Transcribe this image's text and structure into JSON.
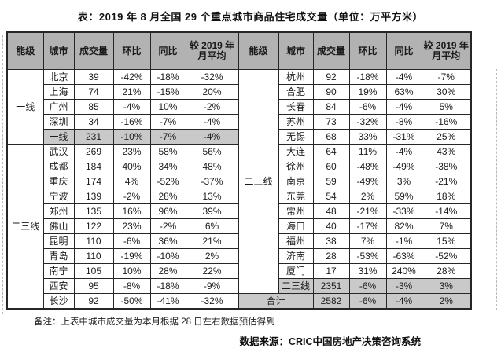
{
  "title": "表：2019 年 8 月全国 29 个重点城市商品住宅成交量（单位：万平方米）",
  "header": [
    "能级",
    "城市",
    "成交量",
    "环比",
    "同比",
    "较 2019 年\n月平均"
  ],
  "left_table": {
    "groups": [
      {
        "tier": "一线",
        "cities": [
          [
            "北京",
            "39",
            "-42%",
            "-18%",
            "-32%"
          ],
          [
            "上海",
            "74",
            "21%",
            "-15%",
            "20%"
          ],
          [
            "广州",
            "85",
            "-4%",
            "10%",
            "-2%"
          ],
          [
            "深圳",
            "34",
            "-16%",
            "-7%",
            "-4%"
          ]
        ],
        "summary": [
          "一线",
          "231",
          "-10%",
          "-7%",
          "-4%"
        ]
      },
      {
        "tier": "二三线",
        "cities": [
          [
            "武汉",
            "269",
            "23%",
            "58%",
            "56%"
          ],
          [
            "成都",
            "184",
            "40%",
            "34%",
            "48%"
          ],
          [
            "重庆",
            "174",
            "4%",
            "-52%",
            "-37%"
          ],
          [
            "宁波",
            "139",
            "-2%",
            "28%",
            "13%"
          ],
          [
            "郑州",
            "135",
            "16%",
            "96%",
            "39%"
          ],
          [
            "佛山",
            "122",
            "23%",
            "-2%",
            "6%"
          ],
          [
            "昆明",
            "110",
            "-6%",
            "36%",
            "21%"
          ],
          [
            "青岛",
            "110",
            "-19%",
            "-10%",
            "2%"
          ],
          [
            "南宁",
            "105",
            "10%",
            "28%",
            "22%"
          ],
          [
            "西安",
            "95",
            "-8%",
            "-18%",
            "-9%"
          ],
          [
            "长沙",
            "92",
            "-50%",
            "-41%",
            "-32%"
          ]
        ],
        "summary": null
      }
    ]
  },
  "right_table": {
    "groups": [
      {
        "tier": "二三线",
        "cities": [
          [
            "杭州",
            "92",
            "-18%",
            "-4%",
            "-7%"
          ],
          [
            "合肥",
            "90",
            "19%",
            "63%",
            "30%"
          ],
          [
            "长春",
            "84",
            "-6%",
            "-4%",
            "5%"
          ],
          [
            "苏州",
            "73",
            "-32%",
            "-8%",
            "-16%"
          ],
          [
            "无锡",
            "68",
            "33%",
            "-31%",
            "25%"
          ],
          [
            "大连",
            "64",
            "11%",
            "-4%",
            "43%"
          ],
          [
            "徐州",
            "60",
            "-48%",
            "-49%",
            "-38%"
          ],
          [
            "南京",
            "59",
            "-49%",
            "3%",
            "-21%"
          ],
          [
            "东莞",
            "54",
            "2%",
            "59%",
            "18%"
          ],
          [
            "常州",
            "48",
            "-21%",
            "-33%",
            "-14%"
          ],
          [
            "海口",
            "40",
            "-17%",
            "82%",
            "7%"
          ],
          [
            "福州",
            "38",
            "7%",
            "-1%",
            "15%"
          ],
          [
            "济南",
            "28",
            "-53%",
            "-63%",
            "-52%"
          ],
          [
            "厦门",
            "17",
            "31%",
            "240%",
            "28%"
          ]
        ],
        "summary": [
          "二三线",
          "2351",
          "-6%",
          "-3%",
          "3%"
        ]
      }
    ],
    "total": [
      "合计",
      "2582",
      "-6%",
      "-4%",
      "2%"
    ]
  },
  "footnote": "备注：上表中城市成交量为本月根据 28 日左右数据预估得到",
  "source": "数据来源：CRIC中国房地产决策咨询系统",
  "colors": {
    "header_bg": "#b2b2b2",
    "summary_bg": "#c9c9c9",
    "border": "#262626"
  }
}
